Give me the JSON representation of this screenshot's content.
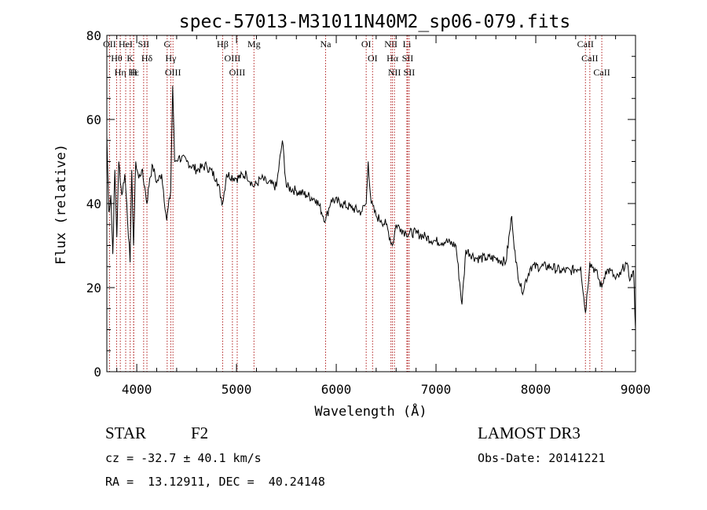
{
  "chart_data": {
    "type": "line",
    "title": "spec-57013-M31011N40M2_sp06-079.fits",
    "xlabel": "Wavelength (Å)",
    "ylabel": "Flux (relative)",
    "xlim": [
      3700,
      9000
    ],
    "ylim": [
      0,
      80
    ],
    "xticks": [
      4000,
      5000,
      6000,
      7000,
      8000,
      9000
    ],
    "xtick_labels": [
      "4000",
      "5000",
      "6000",
      "7000",
      "8000",
      "9000"
    ],
    "yticks": [
      0,
      20,
      40,
      60,
      80
    ],
    "ytick_labels": [
      "0",
      "20",
      "40",
      "60",
      "80"
    ],
    "series": [
      {
        "name": "spectrum",
        "color": "#000000",
        "x": [
          3700,
          3720,
          3740,
          3760,
          3780,
          3800,
          3820,
          3850,
          3880,
          3900,
          3933,
          3950,
          3968,
          3990,
          4020,
          4050,
          4080,
          4102,
          4130,
          4160,
          4200,
          4250,
          4300,
          4340,
          4360,
          4380,
          4420,
          4500,
          4600,
          4700,
          4800,
          4861,
          4900,
          5000,
          5100,
          5175,
          5250,
          5300,
          5400,
          5460,
          5500,
          5600,
          5700,
          5800,
          5893,
          5950,
          6050,
          6150,
          6250,
          6300,
          6320,
          6350,
          6400,
          6450,
          6500,
          6563,
          6600,
          6650,
          6700,
          6800,
          6900,
          7000,
          7100,
          7200,
          7260,
          7300,
          7400,
          7500,
          7600,
          7700,
          7760,
          7800,
          7860,
          7950,
          8050,
          8150,
          8250,
          8350,
          8450,
          8498,
          8542,
          8600,
          8662,
          8700,
          8750,
          8800,
          8850,
          8900,
          8950,
          8980,
          9000
        ],
        "y": [
          56,
          38,
          42,
          28,
          48,
          32,
          50,
          42,
          47,
          40,
          26,
          48,
          30,
          50,
          46,
          48,
          44,
          40,
          46,
          49,
          45,
          47,
          36,
          43,
          68,
          50,
          51,
          50,
          48,
          49,
          46,
          40,
          47,
          46,
          47,
          44,
          46,
          45,
          44,
          55,
          44,
          43,
          42,
          41,
          36,
          41,
          40,
          39,
          38,
          40,
          50,
          40,
          37,
          36,
          35,
          30,
          35,
          34,
          33,
          33,
          32,
          31,
          31,
          30,
          16,
          29,
          27,
          27,
          27,
          26,
          37,
          26,
          19,
          25,
          25,
          25,
          24,
          24,
          25,
          14,
          26,
          24,
          20,
          24,
          24,
          22,
          23,
          26,
          22,
          24,
          10
        ]
      }
    ],
    "line_annotations": [
      {
        "label": "Hε",
        "x": 3970
      },
      {
        "label": "Hδ",
        "x": 4102
      },
      {
        "label": "Hγ",
        "x": 4341
      },
      {
        "label": "Hβ",
        "x": 4861
      },
      {
        "label": "Hα",
        "x": 6563
      },
      {
        "label": "Hθ",
        "x": 3798
      },
      {
        "label": "Hη",
        "x": 3835
      },
      {
        "label": "OII",
        "x": 3727
      },
      {
        "label": "HeI",
        "x": 3889
      },
      {
        "label": "K",
        "x": 3934
      },
      {
        "label": "H",
        "x": 3968
      },
      {
        "label": "SII",
        "x": 4069
      },
      {
        "label": "G",
        "x": 4305
      },
      {
        "label": "OIII",
        "x": 4363
      },
      {
        "label": "OIII",
        "x": 4959
      },
      {
        "label": "OIII",
        "x": 5007
      },
      {
        "label": "Mg",
        "x": 5175
      },
      {
        "label": "Na",
        "x": 5893
      },
      {
        "label": "OI",
        "x": 6300
      },
      {
        "label": "OI",
        "x": 6364
      },
      {
        "label": "NII",
        "x": 6548
      },
      {
        "label": "NII",
        "x": 6583
      },
      {
        "label": "Li",
        "x": 6708
      },
      {
        "label": "SII",
        "x": 6716
      },
      {
        "label": "SII",
        "x": 6731
      },
      {
        "label": "CaII",
        "x": 8498
      },
      {
        "label": "CaII",
        "x": 8542
      },
      {
        "label": "CaII",
        "x": 8662
      }
    ]
  },
  "info": {
    "object_class": "STAR",
    "subclass": "F2",
    "survey": "LAMOST DR3",
    "redshift_text": "cz = -32.7 ± 40.1 km/s",
    "obs_date_text": "Obs-Date: 20141221",
    "coords_text": "RA =  13.12911, DEC =  40.24148"
  },
  "colors": {
    "spectrum": "#000000",
    "line_markers": "#b22222",
    "axes": "#000000",
    "background": "#ffffff"
  }
}
